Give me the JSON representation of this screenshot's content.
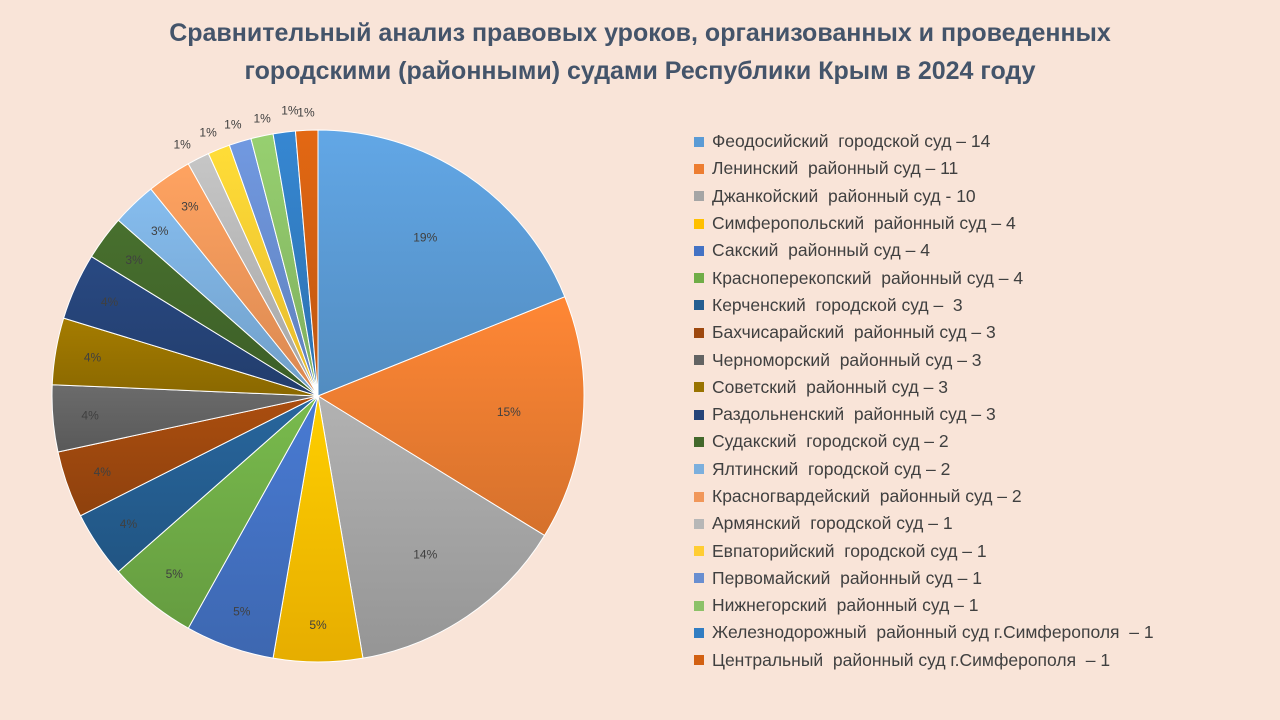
{
  "chart_data": {
    "type": "pie",
    "title": "Сравнительный анализ правовых уроков, организованных и проведенных городскими (районными) судами Республики Крым в 2024 году",
    "title_lines": [
      "Сравнительный анализ правовых уроков, организованных и проведенных",
      "городскими (районными) судами Республики Крым в 2024 году"
    ],
    "legend_position": "right",
    "slices": [
      {
        "name": "Феодосийский  городской суд – 14",
        "value": 14,
        "label": "19%",
        "color": "#5b9bd5"
      },
      {
        "name": "Ленинский  районный суд – 11",
        "value": 11,
        "label": "15%",
        "color": "#ed7d31"
      },
      {
        "name": "Джанкойский  районный суд - 10",
        "value": 10,
        "label": "14%",
        "color": "#a5a5a5"
      },
      {
        "name": "Симферопольский  районный суд – 4",
        "value": 4,
        "label": "5%",
        "color": "#ffc000"
      },
      {
        "name": "Сакский  районный суд – 4",
        "value": 4,
        "label": "5%",
        "color": "#4472c4"
      },
      {
        "name": "Красноперекопский  районный суд – 4",
        "value": 4,
        "label": "5%",
        "color": "#70ad47"
      },
      {
        "name": "Керченский  городской суд –  3",
        "value": 3,
        "label": "4%",
        "color": "#255e91"
      },
      {
        "name": "Бахчисарайский  районный суд – 3",
        "value": 3,
        "label": "4%",
        "color": "#9e480e"
      },
      {
        "name": "Черноморский  районный суд – 3",
        "value": 3,
        "label": "4%",
        "color": "#636363"
      },
      {
        "name": "Советский  районный суд – 3",
        "value": 3,
        "label": "4%",
        "color": "#997300"
      },
      {
        "name": "Раздольненский  районный суд – 3",
        "value": 3,
        "label": "4%",
        "color": "#264478"
      },
      {
        "name": "Судакский  городской суд – 2",
        "value": 2,
        "label": "3%",
        "color": "#43682b"
      },
      {
        "name": "Ялтинский  городской суд – 2",
        "value": 2,
        "label": "3%",
        "color": "#7cafdd"
      },
      {
        "name": "Красногвардейский  районный суд – 2",
        "value": 2,
        "label": "3%",
        "color": "#f1975a"
      },
      {
        "name": "Армянский  городской суд – 1",
        "value": 1,
        "label": "1%",
        "color": "#b7b7b7"
      },
      {
        "name": "Евпаторийский  городской суд – 1",
        "value": 1,
        "label": "1%",
        "color": "#ffcd33"
      },
      {
        "name": "Первомайский  районный суд – 1",
        "value": 1,
        "label": "1%",
        "color": "#698ed0"
      },
      {
        "name": "Нижнегорский  районный суд – 1",
        "value": 1,
        "label": "1%",
        "color": "#8cc168"
      },
      {
        "name": "Железнодорожный  районный суд г.Симферополя  – 1",
        "value": 1,
        "label": "1%",
        "color": "#327dc2"
      },
      {
        "name": "Центральный  районный суд г.Симферополя  – 1",
        "value": 1,
        "label": "1%",
        "color": "#d26012"
      }
    ]
  }
}
